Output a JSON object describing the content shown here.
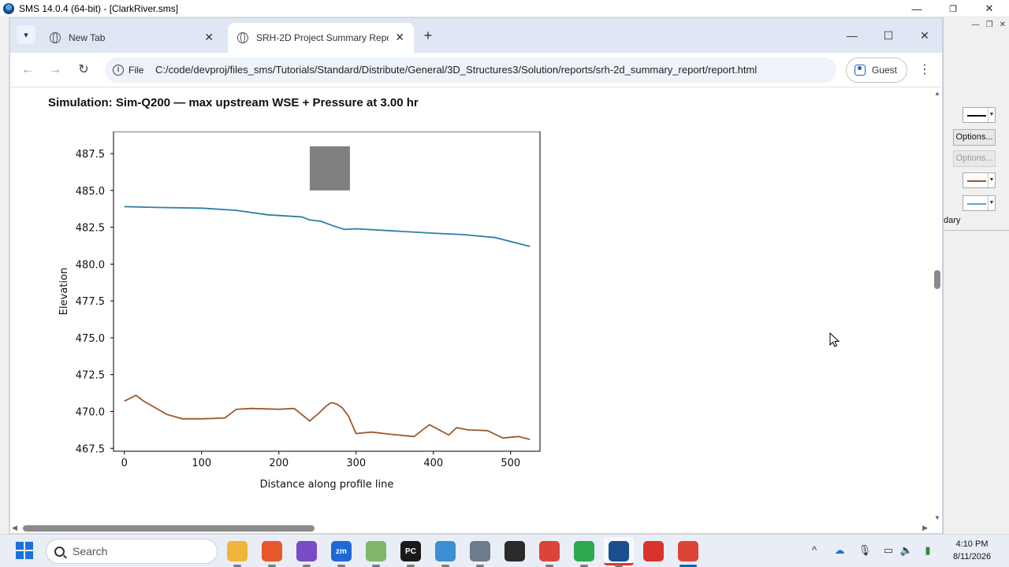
{
  "sms_window": {
    "title": "SMS 14.0.4 (64-bit) - [ClarkRiver.sms]",
    "controls": [
      "—",
      "❐",
      "✕"
    ],
    "mdi_controls": [
      "—",
      "❐",
      "✕"
    ],
    "right_panel": {
      "options_label": "Options...",
      "options_disabled_label": "Options...",
      "boundary_label": "dary",
      "line_colors": {
        "black": "#111111",
        "brown": "#9a5b2e",
        "blue": "#6b9fc9"
      }
    }
  },
  "browser": {
    "tab_menu_icon": "▾",
    "tabs": [
      {
        "title": "New Tab",
        "close": "✕"
      },
      {
        "title": "SRH-2D Project Summary Repo",
        "close": "✕"
      }
    ],
    "new_tab": "+",
    "window_controls": [
      "—",
      "☐",
      "✕"
    ],
    "nav": {
      "back": "←",
      "forward": "→",
      "reload": "↻"
    },
    "omnibox": {
      "chip_label": "File",
      "url": "C:/code/devproj/files_sms/Tutorials/Standard/Distribute/General/3D_Structures3/Solution/reports/srh-2d_summary_report/report.html"
    },
    "profile_label": "Guest",
    "menu": "⋮"
  },
  "page": {
    "heading": "Simulation: Sim-Q200 — max upstream WSE + Pressure at 3.00 hr"
  },
  "chart_data": {
    "type": "line",
    "xlabel": "Distance along profile line",
    "ylabel": "Elevation",
    "xlim": [
      -14,
      538
    ],
    "ylim": [
      467.3,
      489.0
    ],
    "xticks": [
      0,
      100,
      200,
      300,
      400,
      500
    ],
    "yticks": [
      467.5,
      470.0,
      472.5,
      475.0,
      477.5,
      480.0,
      482.5,
      485.0,
      487.5
    ],
    "ytick_labels": [
      "467.5",
      "470.0",
      "472.5",
      "475.0",
      "477.5",
      "480.0",
      "482.5",
      "485.0",
      "487.5"
    ],
    "grid": false,
    "structure_block": {
      "x": [
        240,
        292
      ],
      "y": [
        485.0,
        488.0
      ],
      "color": "#808080"
    },
    "series": [
      {
        "color": "#2e7ea6",
        "x": [
          0,
          40,
          100,
          145,
          185,
          230,
          240,
          255,
          270,
          285,
          300,
          350,
          400,
          440,
          480,
          525
        ],
        "y": [
          483.9,
          483.85,
          483.8,
          483.65,
          483.35,
          483.2,
          483.0,
          482.9,
          482.6,
          482.35,
          482.4,
          482.25,
          482.1,
          482.0,
          481.8,
          481.2
        ]
      },
      {
        "color": "#9a5b2e",
        "x": [
          0,
          15,
          25,
          55,
          75,
          100,
          130,
          145,
          165,
          200,
          220,
          240,
          252,
          262,
          268,
          275,
          282,
          290,
          295,
          300,
          320,
          345,
          375,
          395,
          420,
          430,
          445,
          470,
          490,
          510,
          525
        ],
        "y": [
          470.7,
          471.1,
          470.7,
          469.8,
          469.5,
          469.5,
          469.55,
          470.15,
          470.2,
          470.15,
          470.2,
          469.35,
          469.9,
          470.4,
          470.6,
          470.5,
          470.25,
          469.7,
          469.1,
          468.5,
          468.6,
          468.45,
          468.3,
          469.1,
          468.4,
          468.9,
          468.75,
          468.7,
          468.2,
          468.3,
          468.1
        ]
      }
    ]
  },
  "taskbar": {
    "search_label": "Search",
    "apps": [
      {
        "name": "file-explorer",
        "label": "",
        "color": "#f2b43b"
      },
      {
        "name": "firefox",
        "label": "",
        "color": "#e8572a"
      },
      {
        "name": "visual-studio",
        "label": "",
        "color": "#7a4bc4"
      },
      {
        "name": "zoom",
        "label": "zm",
        "color": "#1f68d6"
      },
      {
        "name": "notepad",
        "label": "",
        "color": "#7fb66a"
      },
      {
        "name": "pycharm",
        "label": "PC",
        "color": "#1a1a1a"
      },
      {
        "name": "image-viewer",
        "label": "",
        "color": "#3b8fd4"
      },
      {
        "name": "settings",
        "label": "",
        "color": "#6d7b8c"
      },
      {
        "name": "terminal",
        "label": "",
        "color": "#2b2b2b"
      },
      {
        "name": "chrome",
        "label": "",
        "color": "#dc4437"
      },
      {
        "name": "chat",
        "label": "",
        "color": "#2fa84f"
      },
      {
        "name": "sms",
        "label": "",
        "color": "#1b4f8f"
      },
      {
        "name": "acrobat",
        "label": "",
        "color": "#d9342b"
      },
      {
        "name": "chrome-active",
        "label": "",
        "color": "#dc4437"
      }
    ],
    "tray_chevron": "^",
    "time": "4:10 PM",
    "date": "8/11/2026"
  }
}
